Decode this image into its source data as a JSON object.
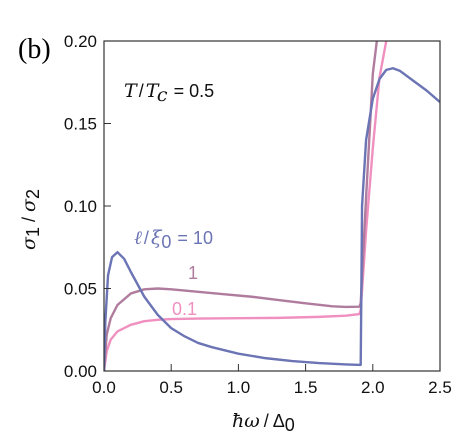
{
  "panel_label": "(b)",
  "annotation_temperature": "T / T_c = 0.5",
  "chart_data": {
    "type": "line",
    "xlabel": "ħω / Δ0",
    "ylabel": "σ1 / σ2",
    "xlim": [
      0,
      2.5
    ],
    "ylim": [
      0,
      0.2
    ],
    "xticks": [
      "0.0",
      "0.5",
      "1.0",
      "1.5",
      "2.0",
      "2.5"
    ],
    "yticks": [
      "0.00",
      "0.05",
      "0.10",
      "0.15",
      "0.20"
    ],
    "grid": false,
    "series": [
      {
        "name": "ℓ / ξ0 = 10",
        "color": "#6b74b4",
        "x": [
          0.0,
          0.01,
          0.03,
          0.06,
          0.1,
          0.15,
          0.2,
          0.3,
          0.4,
          0.5,
          0.6,
          0.7,
          0.8,
          1.0,
          1.2,
          1.4,
          1.6,
          1.8,
          1.91,
          1.915,
          1.92,
          1.95,
          2.0,
          2.05,
          2.1,
          2.15,
          2.2,
          2.3,
          2.4,
          2.5
        ],
        "y": [
          0.0,
          0.03,
          0.058,
          0.069,
          0.072,
          0.068,
          0.06,
          0.045,
          0.034,
          0.026,
          0.021,
          0.017,
          0.0145,
          0.0105,
          0.0078,
          0.006,
          0.0048,
          0.004,
          0.0037,
          0.05,
          0.1,
          0.14,
          0.165,
          0.177,
          0.1825,
          0.1835,
          0.182,
          0.176,
          0.17,
          0.163
        ]
      },
      {
        "name": "1",
        "color": "#b07c9e",
        "x": [
          0.0,
          0.02,
          0.05,
          0.1,
          0.2,
          0.3,
          0.4,
          0.5,
          0.7,
          0.9,
          1.1,
          1.3,
          1.5,
          1.7,
          1.8,
          1.9,
          1.91,
          1.95,
          2.0,
          2.03
        ],
        "y": [
          0.0,
          0.022,
          0.032,
          0.04,
          0.047,
          0.0495,
          0.05,
          0.0495,
          0.048,
          0.0465,
          0.045,
          0.043,
          0.041,
          0.0392,
          0.0388,
          0.039,
          0.041,
          0.105,
          0.18,
          0.2
        ]
      },
      {
        "name": "0.1",
        "color": "#f090c0",
        "x": [
          0.0,
          0.02,
          0.05,
          0.1,
          0.2,
          0.3,
          0.4,
          0.5,
          0.7,
          1.0,
          1.3,
          1.6,
          1.8,
          1.9,
          1.91,
          1.95,
          2.0,
          2.05,
          2.1
        ],
        "y": [
          0.0,
          0.012,
          0.019,
          0.024,
          0.028,
          0.0302,
          0.031,
          0.0315,
          0.0318,
          0.032,
          0.0322,
          0.0328,
          0.0335,
          0.0345,
          0.037,
          0.085,
          0.135,
          0.178,
          0.2
        ]
      }
    ]
  }
}
